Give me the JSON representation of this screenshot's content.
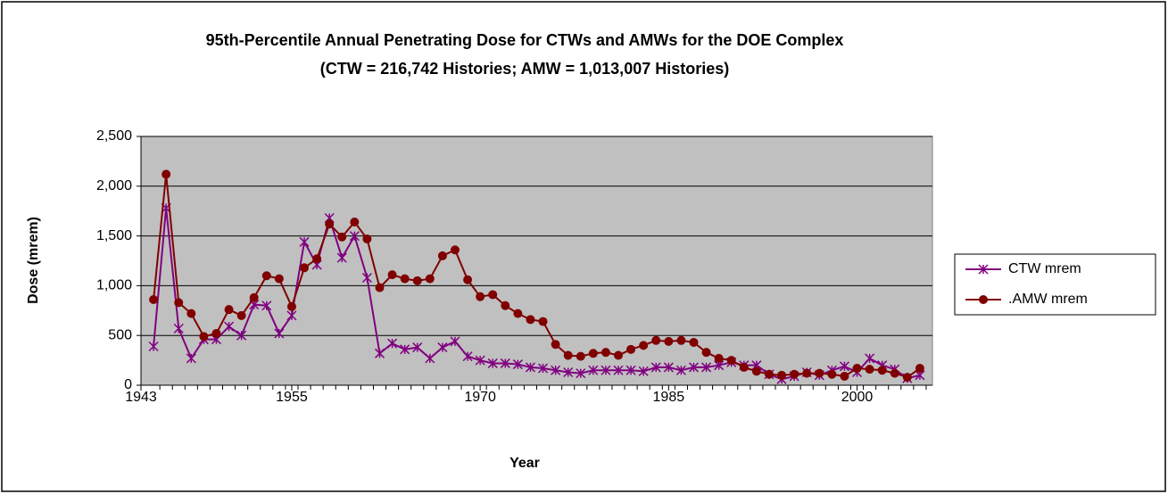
{
  "chart_data": {
    "type": "line",
    "title": "95th-Percentile Annual Penetrating Dose for CTWs and AMWs for the DOE Complex",
    "subtitle": "(CTW = 216,742 Histories; AMW = 1,013,007 Histories)",
    "x_label": "Year",
    "y_label": "Dose (mrem)",
    "x": [
      1944,
      1945,
      1946,
      1947,
      1948,
      1949,
      1950,
      1951,
      1952,
      1953,
      1954,
      1955,
      1956,
      1957,
      1958,
      1959,
      1960,
      1961,
      1962,
      1963,
      1964,
      1965,
      1966,
      1967,
      1968,
      1969,
      1970,
      1971,
      1972,
      1973,
      1974,
      1975,
      1976,
      1977,
      1978,
      1979,
      1980,
      1981,
      1982,
      1983,
      1984,
      1985,
      1986,
      1987,
      1988,
      1989,
      1990,
      1991,
      1992,
      1993,
      1994,
      1995,
      1996,
      1997,
      1998,
      1999,
      2000,
      2001,
      2002,
      2003,
      2004,
      2005
    ],
    "series": [
      {
        "name": "CTW mrem",
        "color": "#800080",
        "marker": "asterisk",
        "values": [
          390,
          1780,
          570,
          270,
          460,
          460,
          590,
          500,
          810,
          800,
          520,
          700,
          1440,
          1210,
          1680,
          1280,
          1500,
          1080,
          320,
          420,
          360,
          380,
          270,
          380,
          440,
          290,
          250,
          220,
          220,
          210,
          180,
          170,
          150,
          130,
          120,
          150,
          150,
          150,
          150,
          140,
          180,
          180,
          150,
          180,
          180,
          200,
          230,
          200,
          200,
          110,
          60,
          90,
          130,
          100,
          150,
          190,
          130,
          270,
          200,
          160,
          70,
          100
        ]
      },
      {
        "name": ".AMW mrem",
        "color": "#800000",
        "marker": "circle",
        "values": [
          860,
          2120,
          830,
          720,
          490,
          520,
          760,
          700,
          880,
          1100,
          1070,
          790,
          1180,
          1270,
          1620,
          1490,
          1640,
          1470,
          980,
          1110,
          1070,
          1050,
          1070,
          1300,
          1360,
          1060,
          890,
          910,
          800,
          720,
          660,
          640,
          410,
          300,
          290,
          320,
          330,
          300,
          360,
          400,
          450,
          440,
          450,
          430,
          330,
          270,
          250,
          180,
          140,
          110,
          100,
          110,
          120,
          120,
          110,
          90,
          170,
          160,
          150,
          120,
          80,
          170
        ]
      }
    ],
    "xlim": [
      1943,
      2006
    ],
    "xticks": [
      1943,
      1955,
      1970,
      1985,
      2000
    ],
    "ylim": [
      0,
      2500
    ],
    "yticks": [
      0,
      500,
      {
        "value": 1000,
        "label": "1,000"
      },
      {
        "value": 1500,
        "label": "1,500"
      },
      {
        "value": 2000,
        "label": "2,000"
      },
      {
        "value": 2500,
        "label": "2,500"
      }
    ],
    "grid": true,
    "legend": "right",
    "plot_background": "#c0c0c0"
  }
}
